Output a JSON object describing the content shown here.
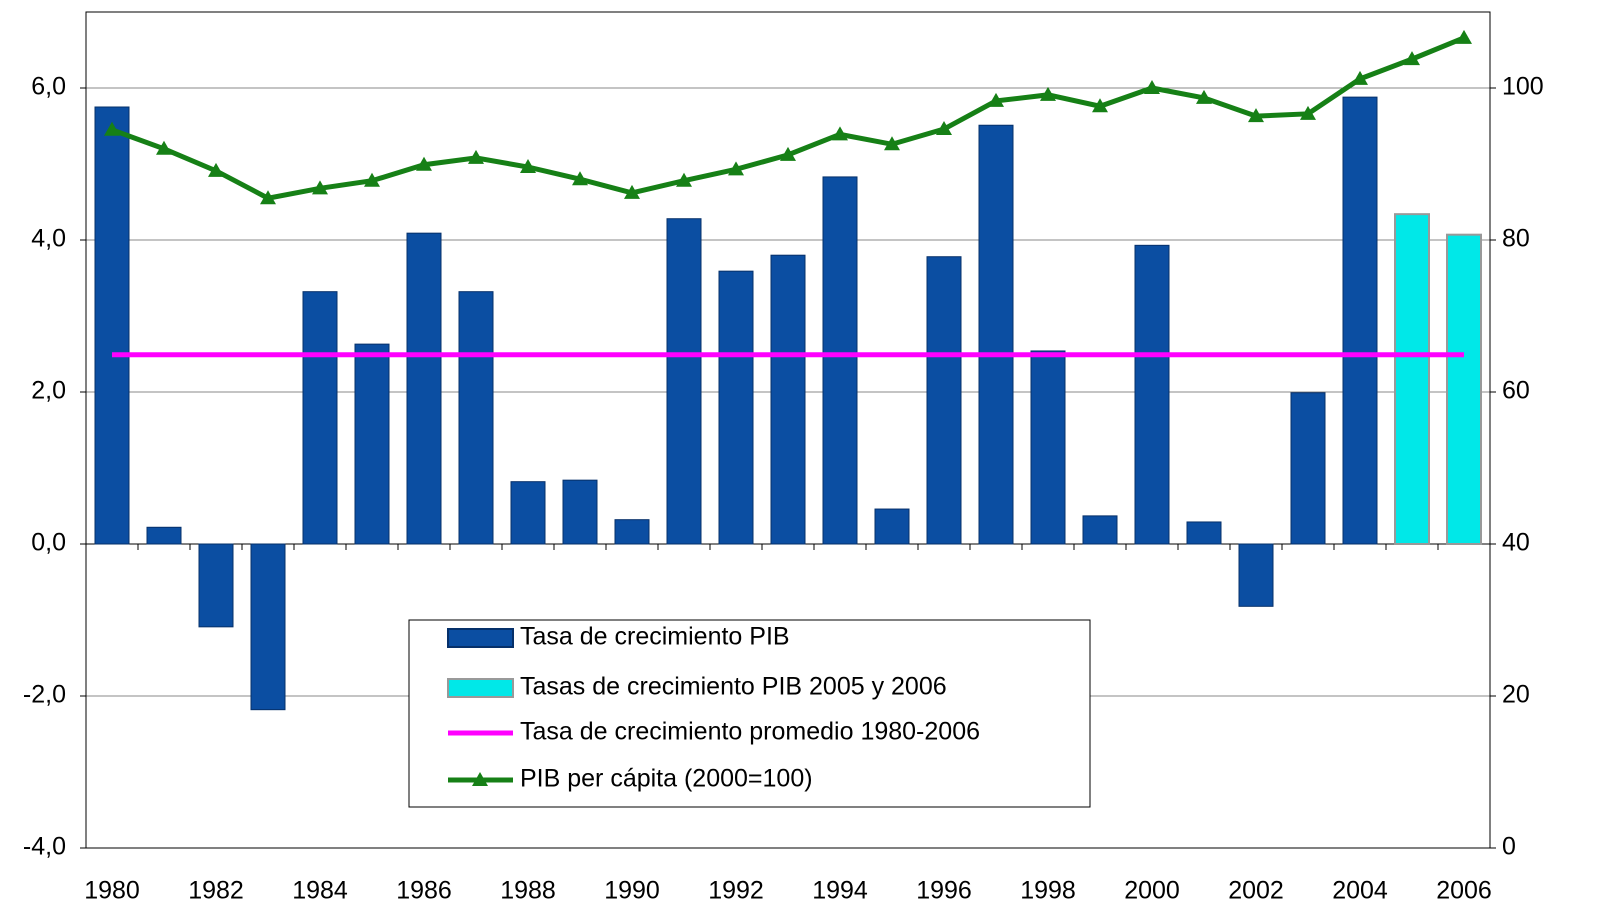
{
  "chart_data": {
    "type": "bar",
    "categories": [
      "1980",
      null,
      "1982",
      null,
      "1984",
      null,
      "1986",
      null,
      "1988",
      null,
      "1990",
      null,
      "1992",
      null,
      "1994",
      null,
      "1996",
      null,
      "1998",
      null,
      "2000",
      null,
      "2002",
      null,
      "2004",
      null,
      "2006"
    ],
    "series": [
      {
        "name": "Tasa de crecimiento PIB",
        "type": "bar",
        "color": "#0b4ea2",
        "values": [
          5.75,
          0.22,
          -1.09,
          -2.18,
          3.32,
          2.63,
          4.09,
          3.32,
          0.82,
          0.84,
          0.32,
          4.28,
          3.59,
          3.8,
          4.83,
          0.46,
          3.78,
          5.51,
          2.54,
          0.37,
          3.93,
          0.29,
          -0.82,
          1.99,
          5.88,
          null,
          null
        ]
      },
      {
        "name": "Tasas de crecimiento PIB 2005 y 2006",
        "type": "bar",
        "color": "#00e8e8",
        "values": [
          null,
          null,
          null,
          null,
          null,
          null,
          null,
          null,
          null,
          null,
          null,
          null,
          null,
          null,
          null,
          null,
          null,
          null,
          null,
          null,
          null,
          null,
          null,
          null,
          null,
          4.34,
          4.07
        ]
      },
      {
        "name": "Tasa de crecimiento promedio 1980-2006",
        "type": "line",
        "color": "#ff00ff",
        "values": [
          2.49,
          2.49,
          2.49,
          2.49,
          2.49,
          2.49,
          2.49,
          2.49,
          2.49,
          2.49,
          2.49,
          2.49,
          2.49,
          2.49,
          2.49,
          2.49,
          2.49,
          2.49,
          2.49,
          2.49,
          2.49,
          2.49,
          2.49,
          2.49,
          2.49,
          2.49,
          2.49
        ]
      },
      {
        "name": "PIB per cápita (2000=100)",
        "type": "line",
        "color": "#168016",
        "axis": "y2",
        "marker": "triangle",
        "values": [
          94.5,
          92.0,
          89.1,
          85.5,
          86.8,
          87.8,
          89.9,
          90.8,
          89.6,
          88.0,
          86.2,
          87.8,
          89.3,
          91.2,
          93.9,
          92.6,
          94.6,
          98.3,
          99.1,
          97.6,
          100,
          98.7,
          96.3,
          96.6,
          101.2,
          103.8,
          106.6
        ]
      }
    ],
    "ylim": [
      -4,
      7
    ],
    "yticks": [
      {
        "value": -4,
        "label": "-4,0"
      },
      {
        "value": -2,
        "label": "-2,0"
      },
      {
        "value": 0,
        "label": "0,0"
      },
      {
        "value": 2,
        "label": "2,0"
      },
      {
        "value": 4,
        "label": "4,0"
      },
      {
        "value": 6,
        "label": "6,0"
      }
    ],
    "y2lim": [
      0,
      110
    ],
    "y2ticks": [
      0,
      20,
      40,
      60,
      80,
      100
    ],
    "grid": true
  }
}
